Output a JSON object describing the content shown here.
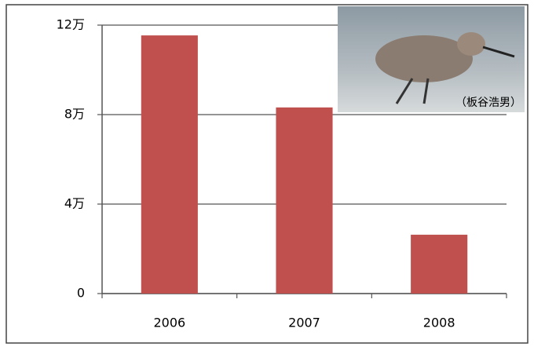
{
  "chart_data": {
    "type": "bar",
    "categories": [
      "2006",
      "2007",
      "2008"
    ],
    "values": [
      115400,
      83200,
      26300
    ],
    "color": "#c0504d",
    "ylim": [
      0,
      120000
    ],
    "yticks": [
      0,
      {
        "value": 40000,
        "label": "4万"
      },
      {
        "value": 80000,
        "label": "8万"
      },
      {
        "value": 120000,
        "label": "12万"
      }
    ],
    "grid": true
  },
  "photo": {
    "credit": "（板谷浩男）"
  }
}
